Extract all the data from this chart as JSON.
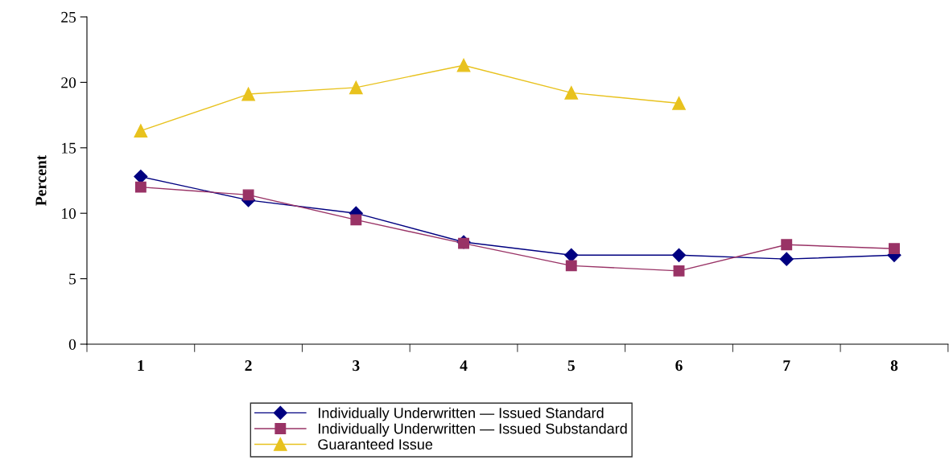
{
  "chart_data": {
    "type": "line",
    "ylabel": "Percent",
    "categories": [
      "1",
      "2",
      "3",
      "4",
      "5",
      "6",
      "7",
      "8"
    ],
    "series": [
      {
        "name": "Individually Underwritten — Issued Standard",
        "color": "#000080",
        "marker": "diamond",
        "values": [
          12.8,
          11.0,
          10.0,
          7.8,
          6.8,
          6.8,
          6.5,
          6.8
        ]
      },
      {
        "name": "Individually Underwritten — Issued Substandard",
        "color": "#993366",
        "marker": "square",
        "values": [
          12.0,
          11.4,
          9.5,
          7.7,
          6.0,
          5.6,
          7.6,
          7.3
        ]
      },
      {
        "name": "Guaranteed Issue",
        "color": "#e8c21e",
        "marker": "triangle",
        "values": [
          16.3,
          19.1,
          19.6,
          21.3,
          19.2,
          18.4,
          null,
          null
        ]
      }
    ],
    "ylim": [
      0,
      25
    ],
    "yticks": [
      0,
      5,
      10,
      15,
      20,
      25
    ],
    "grid": false,
    "legend": "bottom"
  }
}
